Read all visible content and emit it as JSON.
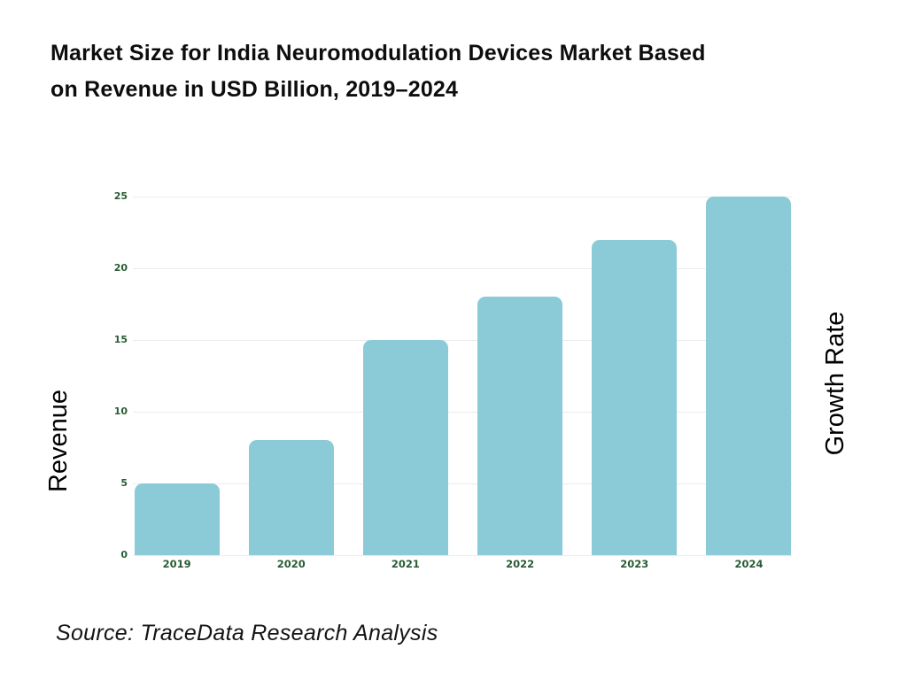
{
  "header": {
    "title_lines": [
      "Market Size for India Neuromodulation Devices Market Based",
      "on Revenue in USD Billion, 2019–2024"
    ]
  },
  "chart_data": {
    "type": "bar",
    "title": "Market Size for India Neuromodulation Devices Market Based on Revenue in USD Billion, 2019–2024",
    "categories": [
      "2019",
      "2020",
      "2021",
      "2022",
      "2023",
      "2024"
    ],
    "values": [
      5,
      8,
      15,
      18,
      22,
      25
    ],
    "xlabel": "",
    "ylabel_left": "Revenue",
    "ylabel_right": "Growth Rate",
    "ylim": [
      0,
      25
    ],
    "y_ticks": [
      0,
      5,
      10,
      15,
      20,
      25
    ],
    "grid": true,
    "legend": "none",
    "bar_color": "#8bcbd8",
    "tick_label_color": "#275c33"
  },
  "footer": {
    "source": "Source: TraceData Research Analysis"
  }
}
